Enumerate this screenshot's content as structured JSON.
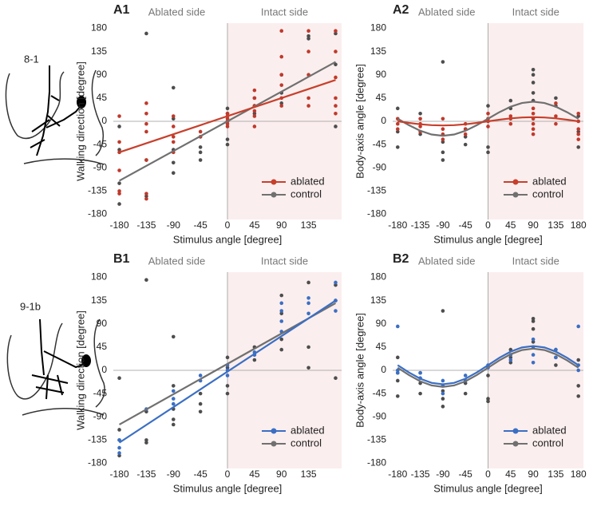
{
  "chart_data": [
    {
      "type": "scatter",
      "panel": "A1",
      "sample": "8-1",
      "side_labels": [
        "Ablated side",
        "Intact side"
      ],
      "x_label": "Stimulus angle [degree]",
      "y_label": "Walking direction [degree]",
      "xlim": [
        -190,
        190
      ],
      "ylim": [
        -190,
        190
      ],
      "xticks": [
        -180,
        -135,
        -90,
        -45,
        0,
        45,
        90,
        135
      ],
      "yticks": [
        -180,
        -135,
        -90,
        -45,
        0,
        45,
        90,
        135,
        180
      ],
      "series": [
        {
          "name": "ablated",
          "color": "#c7402c",
          "point_color": "#c0392b",
          "x": [
            -180,
            -180,
            -180,
            -180,
            -180,
            -180,
            -135,
            -135,
            -135,
            -135,
            -135,
            -135,
            -135,
            -90,
            -90,
            -90,
            -90,
            -90,
            -45,
            -45,
            0,
            0,
            0,
            0,
            0,
            0,
            45,
            45,
            45,
            45,
            45,
            45,
            90,
            90,
            90,
            90,
            90,
            90,
            135,
            135,
            135,
            135,
            135,
            180,
            180,
            180,
            180,
            180,
            180
          ],
          "values": [
            10,
            -40,
            -60,
            -95,
            -135,
            -140,
            35,
            15,
            -5,
            -20,
            -75,
            -140,
            -150,
            10,
            -10,
            -30,
            -40,
            -60,
            -20,
            -30,
            15,
            5,
            0,
            -5,
            -10,
            10,
            60,
            45,
            30,
            20,
            10,
            -10,
            175,
            125,
            90,
            70,
            45,
            30,
            175,
            135,
            90,
            45,
            30,
            175,
            135,
            85,
            45,
            30,
            15
          ],
          "fit": {
            "x": [
              -180,
              180
            ],
            "values": [
              -60,
              80
            ]
          }
        },
        {
          "name": "control",
          "color": "#707070",
          "point_color": "#4d4d4d",
          "x": [
            -180,
            -180,
            -180,
            -180,
            -135,
            -135,
            -135,
            -90,
            -90,
            -90,
            -90,
            -90,
            -45,
            -45,
            -45,
            -45,
            0,
            0,
            0,
            0,
            0,
            45,
            45,
            45,
            90,
            90,
            90,
            135,
            135,
            180,
            180,
            180
          ],
          "values": [
            -10,
            -55,
            -120,
            -160,
            170,
            -75,
            -145,
            65,
            5,
            -55,
            -80,
            -100,
            -30,
            -50,
            -60,
            -75,
            25,
            15,
            0,
            -35,
            -45,
            45,
            30,
            15,
            90,
            55,
            35,
            160,
            165,
            170,
            110,
            -10
          ],
          "fit": {
            "x": [
              -180,
              180
            ],
            "values": [
              -115,
              115
            ]
          }
        }
      ]
    },
    {
      "type": "scatter",
      "panel": "A2",
      "side_labels": [
        "Ablated side",
        "Intact side"
      ],
      "x_label": "Stimulus angle [degree]",
      "y_label": "Body-axis angle [degree]",
      "xlim": [
        -190,
        190
      ],
      "ylim": [
        -190,
        190
      ],
      "xticks": [
        -180,
        -135,
        -90,
        -45,
        0,
        45,
        90,
        135,
        180
      ],
      "yticks": [
        -180,
        -135,
        -90,
        -45,
        0,
        45,
        90,
        135,
        180
      ],
      "series": [
        {
          "name": "ablated",
          "color": "#c7402c",
          "point_color": "#c0392b",
          "x": [
            -180,
            -180,
            -180,
            -135,
            -135,
            -135,
            -135,
            -90,
            -90,
            -90,
            -90,
            -45,
            -45,
            -45,
            0,
            0,
            0,
            0,
            45,
            45,
            45,
            90,
            90,
            90,
            90,
            90,
            90,
            135,
            135,
            135,
            180,
            180,
            180,
            180,
            180
          ],
          "values": [
            5,
            -5,
            -15,
            5,
            -5,
            -10,
            -20,
            5,
            -15,
            -25,
            -35,
            -5,
            -15,
            -25,
            15,
            5,
            0,
            -10,
            10,
            5,
            -5,
            25,
            15,
            5,
            -5,
            -15,
            -25,
            35,
            10,
            -5,
            15,
            0,
            -15,
            -25,
            -35
          ],
          "fit": {
            "x": [
              -180,
              -157.5,
              -135,
              -112.5,
              -90,
              -67.5,
              -45,
              -22.5,
              0,
              22.5,
              45,
              67.5,
              90,
              112.5,
              135,
              157.5,
              180
            ],
            "values": [
              0,
              -3.1,
              -5.7,
              -7.4,
              -8,
              -7.4,
              -5.7,
              -3.1,
              0,
              3.1,
              5.7,
              7.4,
              8,
              7.4,
              5.7,
              3.1,
              0
            ]
          }
        },
        {
          "name": "control",
          "color": "#707070",
          "point_color": "#4d4d4d",
          "x": [
            -180,
            -180,
            -180,
            -135,
            -135,
            -90,
            -90,
            -90,
            -90,
            -45,
            -45,
            -45,
            0,
            0,
            0,
            45,
            45,
            90,
            90,
            90,
            90,
            90,
            135,
            135,
            180,
            180,
            180
          ],
          "values": [
            25,
            -20,
            -50,
            15,
            -25,
            115,
            -40,
            -60,
            -75,
            -15,
            -30,
            -45,
            30,
            -50,
            -60,
            40,
            25,
            100,
            90,
            75,
            55,
            40,
            45,
            30,
            10,
            -20,
            -50
          ],
          "fit": {
            "x": [
              -180,
              -157.5,
              -135,
              -112.5,
              -90,
              -67.5,
              -45,
              -22.5,
              0,
              22.5,
              45,
              67.5,
              90,
              112.5,
              135,
              157.5,
              180
            ],
            "values": [
              5,
              -7.6,
              -18.3,
              -25.5,
              -28,
              -25.5,
              -18.3,
              -7.6,
              5,
              17.6,
              28.3,
              35.5,
              38,
              35.5,
              28.3,
              17.6,
              5
            ]
          }
        }
      ]
    },
    {
      "type": "scatter",
      "panel": "B1",
      "sample": "9-1b",
      "side_labels": [
        "Ablated side",
        "Intact side"
      ],
      "x_label": "Stimulus angle [degree]",
      "y_label": "Walking direction [degree]",
      "xlim": [
        -190,
        190
      ],
      "ylim": [
        -190,
        190
      ],
      "xticks": [
        -180,
        -135,
        -90,
        -45,
        0,
        45,
        90,
        135
      ],
      "yticks": [
        -180,
        -135,
        -90,
        -45,
        0,
        45,
        90,
        135,
        180
      ],
      "series": [
        {
          "name": "ablated",
          "color": "#3b6fc4",
          "point_color": "#3b6fc4",
          "x": [
            -180,
            -180,
            -180,
            -135,
            -90,
            -90,
            -90,
            -45,
            -45,
            0,
            0,
            0,
            45,
            45,
            90,
            90,
            90,
            90,
            135,
            135,
            135,
            180,
            180,
            180
          ],
          "values": [
            -135,
            -150,
            -160,
            -75,
            -40,
            -55,
            -65,
            -10,
            -20,
            10,
            0,
            -10,
            35,
            30,
            130,
            115,
            95,
            75,
            140,
            130,
            110,
            170,
            135,
            115
          ],
          "fit": {
            "x": [
              -180,
              180
            ],
            "values": [
              -140,
              135
            ]
          }
        },
        {
          "name": "control",
          "color": "#707070",
          "point_color": "#4d4d4d",
          "x": [
            -180,
            -180,
            -180,
            -180,
            -135,
            -135,
            -135,
            -135,
            -90,
            -90,
            -90,
            -90,
            -90,
            -45,
            -45,
            -45,
            0,
            0,
            0,
            0,
            45,
            45,
            45,
            90,
            90,
            90,
            90,
            135,
            135,
            135,
            180,
            180,
            180
          ],
          "values": [
            -15,
            -115,
            -135,
            -165,
            175,
            -80,
            -135,
            -140,
            65,
            -30,
            -75,
            -95,
            -105,
            -45,
            -65,
            -80,
            25,
            5,
            -30,
            -45,
            45,
            30,
            20,
            145,
            110,
            60,
            40,
            170,
            45,
            5,
            165,
            135,
            -15
          ],
          "fit": {
            "x": [
              -180,
              180
            ],
            "values": [
              -105,
              130
            ]
          }
        }
      ]
    },
    {
      "type": "scatter",
      "panel": "B2",
      "side_labels": [
        "Ablated side",
        "Intact side"
      ],
      "x_label": "Stimulus angle [degree]",
      "y_label": "Body-axis angle [degree]",
      "xlim": [
        -190,
        190
      ],
      "ylim": [
        -190,
        190
      ],
      "xticks": [
        -180,
        -135,
        -90,
        -45,
        0,
        45,
        90,
        135,
        180
      ],
      "yticks": [
        -180,
        -135,
        -90,
        -45,
        0,
        45,
        90,
        135,
        180
      ],
      "series": [
        {
          "name": "ablated",
          "color": "#3b6fc4",
          "point_color": "#3b6fc4",
          "x": [
            -180,
            -180,
            -180,
            -135,
            -135,
            -90,
            -90,
            -90,
            -45,
            -45,
            0,
            0,
            45,
            45,
            90,
            90,
            90,
            90,
            135,
            135,
            180,
            180,
            180
          ],
          "values": [
            85,
            0,
            -5,
            -5,
            -15,
            -20,
            -30,
            -45,
            -10,
            -20,
            10,
            5,
            30,
            20,
            60,
            45,
            30,
            15,
            40,
            25,
            85,
            10,
            0
          ],
          "fit": {
            "x": [
              -180,
              -157.5,
              -135,
              -112.5,
              -90,
              -67.5,
              -45,
              -22.5,
              0,
              22.5,
              45,
              67.5,
              90,
              112.5,
              135,
              157.5,
              180
            ],
            "values": [
              10,
              -4.2,
              -16.2,
              -24.2,
              -27,
              -24.2,
              -16.2,
              -4.2,
              10,
              24.2,
              36.2,
              44.2,
              47,
              44.2,
              36.2,
              24.2,
              10
            ]
          }
        },
        {
          "name": "control",
          "color": "#707070",
          "point_color": "#4d4d4d",
          "x": [
            -180,
            -180,
            -180,
            -180,
            -135,
            -135,
            -135,
            -90,
            -90,
            -90,
            -90,
            -45,
            -45,
            0,
            0,
            0,
            45,
            45,
            45,
            90,
            90,
            90,
            90,
            135,
            135,
            135,
            180,
            180,
            180
          ],
          "values": [
            25,
            -5,
            -20,
            -50,
            -5,
            -25,
            -45,
            115,
            -40,
            -55,
            -70,
            -25,
            -45,
            -10,
            -55,
            -60,
            40,
            25,
            15,
            100,
            95,
            80,
            55,
            40,
            25,
            10,
            20,
            -30,
            -50
          ],
          "fit": {
            "x": [
              -180,
              -157.5,
              -135,
              -112.5,
              -90,
              -67.5,
              -45,
              -22.5,
              0,
              22.5,
              45,
              67.5,
              90,
              112.5,
              135,
              157.5,
              180
            ],
            "values": [
              5,
              -9.2,
              -21.2,
              -29.2,
              -32,
              -29.2,
              -21.2,
              -9.2,
              5,
              19.2,
              31.2,
              39.2,
              42,
              39.2,
              31.2,
              19.2,
              5
            ]
          }
        }
      ]
    }
  ]
}
